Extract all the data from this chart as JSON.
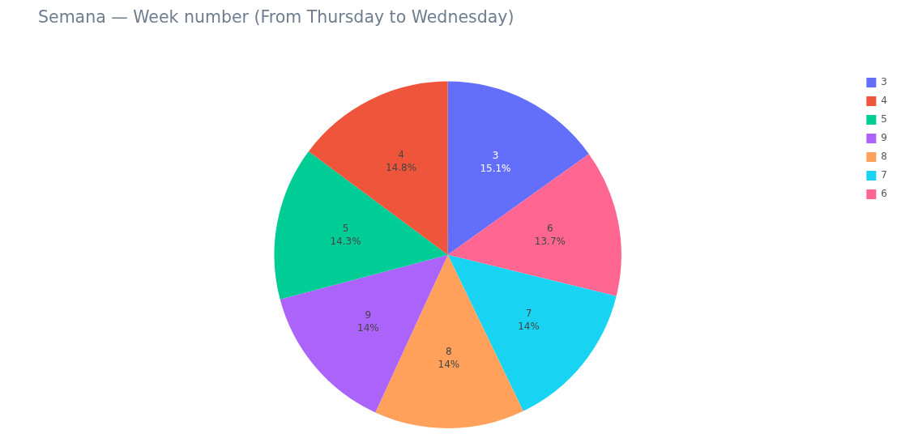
{
  "chart_data": {
    "type": "pie",
    "title": "Semana — Week number (From Thursday to Wednesday)",
    "categories": [
      "3",
      "6",
      "7",
      "8",
      "9",
      "5",
      "4"
    ],
    "values": [
      15.1,
      13.7,
      14,
      14,
      14,
      14.3,
      14.8
    ],
    "colors": [
      "#636efa",
      "#ff6692",
      "#19d3f3",
      "#ffa15a",
      "#ab63fa",
      "#00cc96",
      "#ef553b"
    ],
    "value_labels": [
      "15.1%",
      "13.7%",
      "14%",
      "14%",
      "14%",
      "14.3%",
      "14.8%"
    ],
    "legend": "top right"
  }
}
